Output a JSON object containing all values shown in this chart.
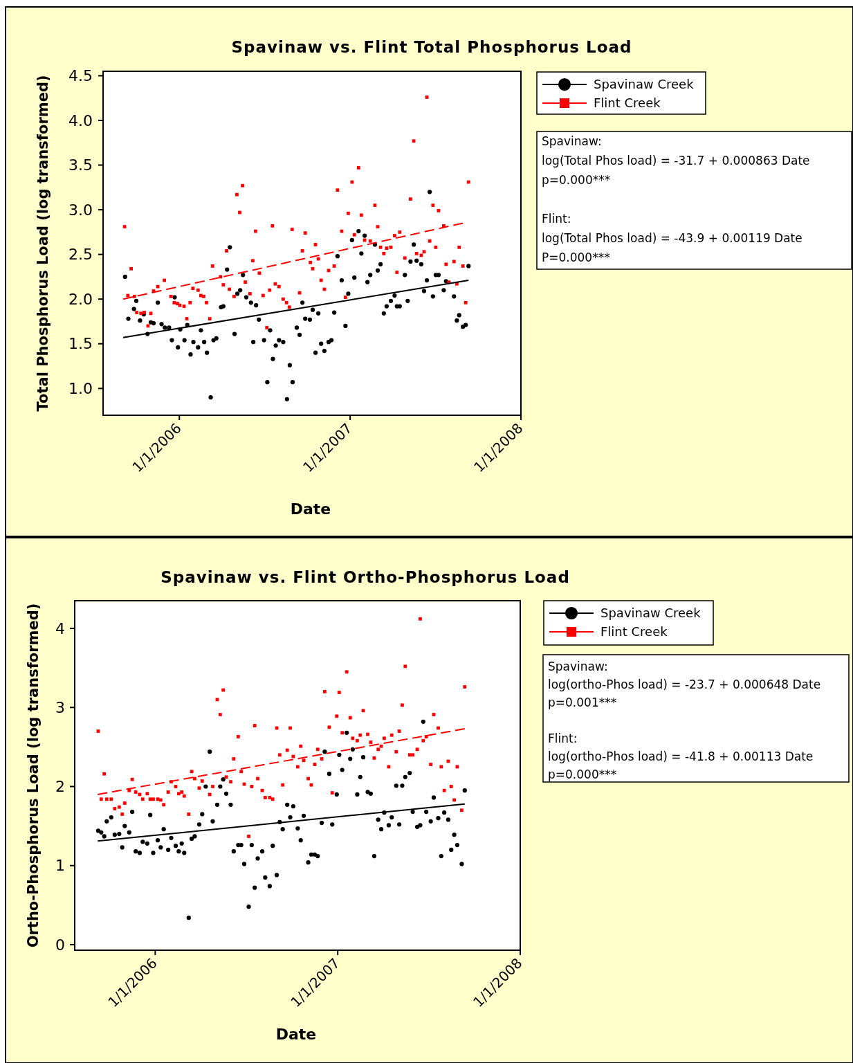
{
  "chart_data": [
    {
      "type": "scatter",
      "title": "Spavinaw vs. Flint Total Phosphorus Load",
      "xlabel": "Date",
      "ylabel": "Total Phosphorus Load (log transformed)",
      "legend": "right",
      "xlim": [
        "2005-07-22",
        "2008-01-01"
      ],
      "xticks": [
        {
          "value": "2006-01-01",
          "label": "1/1/2006"
        },
        {
          "value": "2007-01-01",
          "label": "1/1/2007"
        },
        {
          "value": "2008-01-01",
          "label": "1/1/2008"
        }
      ],
      "ylim": [
        0.7,
        4.55
      ],
      "yticks": [
        {
          "value": 1,
          "label": "1.0"
        },
        1.5,
        {
          "value": 2,
          "label": "2.0"
        },
        2.5,
        {
          "value": 3,
          "label": "3.0"
        },
        3.5,
        {
          "value": 4,
          "label": "4.0"
        },
        4.5
      ],
      "annotations": [
        "Spavinaw:",
        "log(Total Phos load) = -31.7 + 0.000863 Date",
        "p=0.000***",
        "Flint:",
        "log(Total Phos load) = -43.9 + 0.00119 Date",
        "P=0.000***"
      ],
      "series": [
        {
          "name": "Spavinaw Creek",
          "type": "scatter",
          "marker": "circle",
          "color": "#000000",
          "x": [
            "2005-09-07",
            "2005-09-14",
            "2005-09-26",
            "2005-10-01",
            "2005-10-09",
            "2005-10-17",
            "2005-10-25",
            "2005-11-01",
            "2005-11-07",
            "2005-11-16",
            "2005-11-24",
            "2005-12-01",
            "2005-12-10",
            "2005-12-16",
            "2005-12-22",
            "2005-12-29",
            "2006-01-03",
            "2006-01-12",
            "2006-01-18",
            "2006-01-25",
            "2006-01-31",
            "2006-02-10",
            "2006-02-16",
            "2006-02-23",
            "2006-03-01",
            "2006-03-09",
            "2006-03-15",
            "2006-03-21",
            "2006-03-31",
            "2006-04-05",
            "2006-04-13",
            "2006-04-19",
            "2006-04-29",
            "2006-05-05",
            "2006-05-11",
            "2006-05-17",
            "2006-05-24",
            "2006-06-03",
            "2006-06-08",
            "2006-06-14",
            "2006-06-20",
            "2006-07-01",
            "2006-07-08",
            "2006-07-14",
            "2006-07-20",
            "2006-07-26",
            "2006-08-02",
            "2006-08-11",
            "2006-08-19",
            "2006-08-25",
            "2006-08-31",
            "2006-09-09",
            "2006-09-15",
            "2006-09-21",
            "2006-09-27",
            "2006-10-07",
            "2006-10-13",
            "2006-10-19",
            "2006-10-25",
            "2006-10-31",
            "2006-11-07",
            "2006-11-16",
            "2006-11-22",
            "2006-11-28",
            "2006-12-05",
            "2006-12-14",
            "2006-12-22",
            "2006-12-28",
            "2007-01-05",
            "2007-01-10",
            "2007-01-19",
            "2007-01-25",
            "2007-02-01",
            "2007-02-07",
            "2007-02-13",
            "2007-02-23",
            "2007-03-01",
            "2007-03-07",
            "2007-03-14",
            "2007-03-20",
            "2007-03-29",
            "2007-04-06",
            "2007-04-11",
            "2007-04-17",
            "2007-04-28",
            "2007-05-04",
            "2007-05-10",
            "2007-05-17",
            "2007-05-23",
            "2007-06-02",
            "2007-06-08",
            "2007-06-14",
            "2007-06-20",
            "2007-06-27",
            "2007-07-03",
            "2007-07-09",
            "2007-07-20",
            "2007-07-25",
            "2007-08-11",
            "2007-08-17",
            "2007-08-22",
            "2007-08-30",
            "2007-09-05",
            "2007-09-11"
          ],
          "values": [
            2.25,
            1.78,
            1.89,
            1.98,
            1.76,
            1.83,
            1.61,
            1.74,
            1.73,
            1.96,
            1.72,
            1.68,
            1.68,
            1.54,
            2.02,
            1.46,
            1.66,
            1.54,
            1.71,
            1.38,
            1.52,
            1.46,
            1.65,
            1.52,
            1.4,
            0.9,
            1.54,
            1.56,
            1.91,
            1.92,
            2.33,
            2.58,
            1.61,
            2.06,
            2.1,
            2.27,
            2.02,
            1.96,
            1.52,
            1.93,
            1.77,
            1.54,
            1.07,
            1.65,
            1.33,
            1.48,
            1.54,
            1.52,
            0.88,
            1.26,
            1.07,
            1.68,
            1.6,
            1.96,
            1.78,
            1.77,
            1.88,
            1.4,
            1.84,
            1.5,
            1.42,
            1.52,
            1.54,
            1.85,
            2.48,
            2.21,
            1.7,
            2.06,
            2.66,
            2.24,
            2.76,
            2.51,
            2.71,
            2.19,
            2.27,
            2.61,
            2.32,
            2.39,
            1.84,
            1.92,
            1.98,
            2.04,
            1.92,
            1.92,
            2.27,
            1.98,
            2.42,
            2.61,
            2.43,
            2.39,
            2.09,
            2.21,
            3.2,
            2.03,
            2.27,
            2.27,
            2.1,
            2.2,
            2.03,
            1.76,
            1.82,
            1.69,
            1.71,
            2.37
          ]
        },
        {
          "name": "Flint Creek",
          "type": "scatter",
          "marker": "square",
          "color": "#ff0000",
          "x": [
            "2005-09-06",
            "2005-09-13",
            "2005-09-20",
            "2005-09-27",
            "2005-10-02",
            "2005-10-11",
            "2005-10-18",
            "2005-10-26",
            "2005-11-01",
            "2005-11-07",
            "2005-11-16",
            "2005-11-30",
            "2005-12-14",
            "2005-12-21",
            "2005-12-28",
            "2006-01-02",
            "2006-01-11",
            "2006-01-17",
            "2006-01-24",
            "2006-01-30",
            "2006-02-10",
            "2006-02-16",
            "2006-02-22",
            "2006-02-28",
            "2006-03-07",
            "2006-03-13",
            "2006-03-30",
            "2006-04-05",
            "2006-04-12",
            "2006-04-18",
            "2006-04-28",
            "2006-05-04",
            "2006-05-10",
            "2006-05-16",
            "2006-05-22",
            "2006-06-01",
            "2006-06-07",
            "2006-06-13",
            "2006-06-21",
            "2006-06-29",
            "2006-07-07",
            "2006-07-13",
            "2006-07-19",
            "2006-07-25",
            "2006-08-02",
            "2006-08-11",
            "2006-08-18",
            "2006-08-24",
            "2006-08-30",
            "2006-09-15",
            "2006-09-21",
            "2006-09-27",
            "2006-10-08",
            "2006-10-13",
            "2006-10-19",
            "2006-10-25",
            "2006-10-31",
            "2006-11-07",
            "2006-11-16",
            "2006-11-28",
            "2006-12-05",
            "2006-12-14",
            "2006-12-22",
            "2006-12-28",
            "2007-01-05",
            "2007-01-10",
            "2007-01-19",
            "2007-01-25",
            "2007-02-01",
            "2007-02-13",
            "2007-02-23",
            "2007-03-01",
            "2007-03-07",
            "2007-03-14",
            "2007-03-20",
            "2007-03-29",
            "2007-04-06",
            "2007-04-11",
            "2007-04-17",
            "2007-04-28",
            "2007-05-10",
            "2007-05-17",
            "2007-05-23",
            "2007-06-02",
            "2007-06-08",
            "2007-06-14",
            "2007-06-20",
            "2007-06-27",
            "2007-07-03",
            "2007-07-09",
            "2007-07-20",
            "2007-07-25",
            "2007-07-31",
            "2007-08-11",
            "2007-08-17",
            "2007-08-22",
            "2007-08-30",
            "2007-09-05",
            "2007-09-11"
          ],
          "values": [
            2.81,
            2.04,
            2.34,
            2.03,
            1.85,
            1.84,
            1.85,
            1.7,
            1.84,
            2.09,
            2.14,
            2.21,
            2.03,
            1.96,
            1.95,
            1.93,
            1.92,
            1.78,
            1.96,
            2.12,
            2.1,
            2.04,
            2.03,
            1.96,
            1.78,
            2.37,
            2.25,
            2.16,
            2.54,
            2.11,
            2.03,
            3.17,
            2.97,
            3.27,
            2.19,
            2.06,
            2.43,
            2.76,
            2.29,
            2.04,
            1.68,
            2.1,
            2.82,
            2.17,
            2.14,
            2.0,
            1.96,
            1.91,
            2.78,
            2.07,
            2.54,
            2.74,
            2.41,
            2.34,
            2.61,
            2.45,
            2.21,
            2.11,
            2.32,
            2.37,
            3.22,
            2.76,
            2.02,
            2.96,
            3.31,
            2.72,
            3.47,
            2.94,
            2.66,
            2.65,
            3.05,
            2.81,
            2.58,
            2.51,
            2.57,
            2.58,
            2.71,
            2.3,
            2.75,
            2.46,
            3.12,
            3.77,
            2.51,
            2.49,
            2.53,
            4.26,
            2.65,
            3.05,
            2.58,
            2.99,
            2.82,
            2.39,
            2.19,
            2.42,
            2.17,
            2.58,
            2.37,
            1.96,
            3.31
          ]
        },
        {
          "type": "line",
          "color": "#000000",
          "line_style": "solid",
          "x": [
            "2005-09-03",
            "2007-09-11"
          ],
          "values": [
            1.57,
            2.21
          ]
        },
        {
          "type": "line",
          "color": "#ff0000",
          "line_style": "dashed",
          "x": [
            "2005-09-03",
            "2007-08-30"
          ],
          "values": [
            2.0,
            2.85
          ]
        }
      ]
    },
    {
      "type": "scatter",
      "title": "Spavinaw vs. Flint Ortho-Phosphorus Load",
      "xlabel": "Date",
      "ylabel": "Ortho-Phosphorus Load (log transformed)",
      "legend": "right",
      "xlim": [
        "2005-07-24",
        "2008-01-01"
      ],
      "xticks": [
        {
          "value": "2006-01-01",
          "label": "1/1/2006"
        },
        {
          "value": "2007-01-01",
          "label": "1/1/2007"
        },
        {
          "value": "2008-01-01",
          "label": "1/1/2008"
        }
      ],
      "ylim": [
        -0.07,
        4.35
      ],
      "yticks": [
        0,
        1,
        2,
        3,
        4
      ],
      "annotations": [
        "Spavinaw:",
        "log(ortho-Phos load) = -23.7 + 0.000648 Date",
        "p=0.001***",
        "Flint:",
        "log(ortho-Phos load) = -41.8 + 0.00113 Date",
        "p=0.000***"
      ],
      "series": [
        {
          "name": "Spavinaw Creek",
          "type": "scatter",
          "marker": "circle",
          "color": "#000000",
          "x": [
            "2005-09-09",
            "2005-09-15",
            "2005-09-21",
            "2005-09-26",
            "2005-10-05",
            "2005-10-12",
            "2005-10-21",
            "2005-10-27",
            "2005-11-01",
            "2005-11-10",
            "2005-11-16",
            "2005-11-23",
            "2005-12-01",
            "2005-12-07",
            "2005-12-16",
            "2005-12-22",
            "2005-12-28",
            "2006-01-06",
            "2006-01-12",
            "2006-01-18",
            "2006-01-27",
            "2006-02-02",
            "2006-02-11",
            "2006-02-17",
            "2006-02-23",
            "2006-02-28",
            "2006-03-09",
            "2006-03-15",
            "2006-03-21",
            "2006-03-30",
            "2006-04-05",
            "2006-04-12",
            "2006-04-20",
            "2006-04-26",
            "2006-05-05",
            "2006-05-11",
            "2006-05-17",
            "2006-05-23",
            "2006-06-01",
            "2006-06-07",
            "2006-06-16",
            "2006-06-22",
            "2006-06-28",
            "2006-07-07",
            "2006-07-13",
            "2006-07-19",
            "2006-07-25",
            "2006-08-03",
            "2006-08-09",
            "2006-08-18",
            "2006-08-24",
            "2006-09-01",
            "2006-09-07",
            "2006-09-13",
            "2006-09-22",
            "2006-09-28",
            "2006-10-04",
            "2006-10-13",
            "2006-10-19",
            "2006-10-25",
            "2006-11-03",
            "2006-11-09",
            "2006-11-16",
            "2006-11-22",
            "2006-11-30",
            "2006-12-06",
            "2006-12-15",
            "2006-12-21",
            "2006-12-30",
            "2007-01-04",
            "2007-01-10",
            "2007-01-19",
            "2007-01-26",
            "2007-01-31",
            "2007-02-09",
            "2007-02-15",
            "2007-02-21",
            "2007-03-02",
            "2007-03-08",
            "2007-03-15",
            "2007-03-23",
            "2007-03-29",
            "2007-04-04",
            "2007-04-13",
            "2007-04-19",
            "2007-04-28",
            "2007-05-04",
            "2007-05-10",
            "2007-05-16",
            "2007-05-25",
            "2007-05-31",
            "2007-06-09",
            "2007-06-15",
            "2007-06-21",
            "2007-06-27",
            "2007-07-06",
            "2007-07-12",
            "2007-07-21",
            "2007-07-27",
            "2007-08-02",
            "2007-08-10",
            "2007-08-16",
            "2007-08-22",
            "2007-08-28",
            "2007-09-06",
            "2007-09-12"
          ],
          "values": [
            1.44,
            1.42,
            1.37,
            1.56,
            1.61,
            1.39,
            1.4,
            1.23,
            1.5,
            1.42,
            1.68,
            1.18,
            1.16,
            1.3,
            1.28,
            1.64,
            1.16,
            1.32,
            1.23,
            1.46,
            1.2,
            1.35,
            1.25,
            1.18,
            1.28,
            1.16,
            0.34,
            1.34,
            1.37,
            1.52,
            1.65,
            2.0,
            2.44,
            1.56,
            1.77,
            2.0,
            2.09,
            1.91,
            1.77,
            1.18,
            1.26,
            1.26,
            1.02,
            0.48,
            1.26,
            0.72,
            1.09,
            1.18,
            0.85,
            0.74,
            1.25,
            0.88,
            1.55,
            1.46,
            1.77,
            1.61,
            1.75,
            1.47,
            1.32,
            1.63,
            1.04,
            1.14,
            1.14,
            1.12,
            1.54,
            2.44,
            2.16,
            1.52,
            1.9,
            2.4,
            2.21,
            2.68,
            2.35,
            2.47,
            1.9,
            2.12,
            2.37,
            1.93,
            1.91,
            1.12,
            1.58,
            1.46,
            1.67,
            1.51,
            1.61,
            2.01,
            1.52,
            2.01,
            2.12,
            2.17,
            1.68,
            1.49,
            1.51,
            2.82,
            1.68,
            1.56,
            1.86,
            1.6,
            1.12,
            1.67,
            1.58,
            1.2,
            1.39,
            1.26,
            1.02,
            1.95
          ]
        },
        {
          "name": "Flint Creek",
          "type": "scatter",
          "marker": "square",
          "color": "#ff0000",
          "x": [
            "2005-09-09",
            "2005-09-15",
            "2005-09-21",
            "2005-09-26",
            "2005-10-05",
            "2005-10-12",
            "2005-10-21",
            "2005-10-27",
            "2005-11-01",
            "2005-11-10",
            "2005-11-16",
            "2005-11-23",
            "2005-12-01",
            "2005-12-07",
            "2005-12-16",
            "2005-12-22",
            "2005-12-28",
            "2006-01-06",
            "2006-01-12",
            "2006-01-18",
            "2006-01-27",
            "2006-02-02",
            "2006-02-11",
            "2006-02-17",
            "2006-02-23",
            "2006-02-28",
            "2006-03-09",
            "2006-03-15",
            "2006-03-21",
            "2006-03-30",
            "2006-04-05",
            "2006-04-20",
            "2006-04-26",
            "2006-05-05",
            "2006-05-11",
            "2006-05-17",
            "2006-05-23",
            "2006-06-01",
            "2006-06-07",
            "2006-06-16",
            "2006-06-22",
            "2006-06-28",
            "2006-07-07",
            "2006-07-13",
            "2006-07-19",
            "2006-07-25",
            "2006-08-03",
            "2006-08-09",
            "2006-08-18",
            "2006-08-24",
            "2006-09-01",
            "2006-09-07",
            "2006-09-13",
            "2006-09-22",
            "2006-09-28",
            "2006-10-04",
            "2006-10-13",
            "2006-10-19",
            "2006-10-25",
            "2006-11-03",
            "2006-11-09",
            "2006-11-16",
            "2006-11-22",
            "2006-11-30",
            "2006-12-06",
            "2006-12-15",
            "2006-12-21",
            "2006-12-30",
            "2007-01-04",
            "2007-01-10",
            "2007-01-19",
            "2007-01-26",
            "2007-01-31",
            "2007-02-09",
            "2007-02-15",
            "2007-02-21",
            "2007-03-02",
            "2007-03-08",
            "2007-03-15",
            "2007-03-23",
            "2007-03-29",
            "2007-04-04",
            "2007-04-13",
            "2007-04-19",
            "2007-04-28",
            "2007-05-04",
            "2007-05-10",
            "2007-05-16",
            "2007-05-25",
            "2007-05-31",
            "2007-06-09",
            "2007-06-15",
            "2007-06-21",
            "2007-06-27",
            "2007-07-06",
            "2007-07-12",
            "2007-07-21",
            "2007-07-27",
            "2007-08-02",
            "2007-08-10",
            "2007-08-16",
            "2007-08-22",
            "2007-08-28",
            "2007-09-06",
            "2007-09-12"
          ],
          "values": [
            2.7,
            1.84,
            2.16,
            1.84,
            1.84,
            1.72,
            1.74,
            1.65,
            1.79,
            1.95,
            2.09,
            1.93,
            1.9,
            1.84,
            1.91,
            1.84,
            1.84,
            1.84,
            1.83,
            1.77,
            1.93,
            2.06,
            2.0,
            1.91,
            1.93,
            1.88,
            1.65,
            2.19,
            2.1,
            1.98,
            2.07,
            1.9,
            2.0,
            3.1,
            2.91,
            3.22,
            2.12,
            2.06,
            2.35,
            2.63,
            2.19,
            2.03,
            1.37,
            2.0,
            2.77,
            2.1,
            1.95,
            1.86,
            1.86,
            1.84,
            2.74,
            2.4,
            2.02,
            2.46,
            2.74,
            2.38,
            2.25,
            2.51,
            2.33,
            2.1,
            2.02,
            2.28,
            2.47,
            2.35,
            3.2,
            2.75,
            1.92,
            2.89,
            3.19,
            2.68,
            3.45,
            2.87,
            2.61,
            2.58,
            2.65,
            2.96,
            2.66,
            2.56,
            2.36,
            2.47,
            2.51,
            2.61,
            2.25,
            2.65,
            2.44,
            2.7,
            3.03,
            3.52,
            2.4,
            2.4,
            2.47,
            4.12,
            2.58,
            2.63,
            2.28,
            2.91,
            2.74,
            2.25,
            1.95,
            2.32,
            2.0,
            1.83,
            2.25,
            1.7,
            3.26
          ]
        },
        {
          "type": "line",
          "color": "#000000",
          "line_style": "solid",
          "x": [
            "2005-09-08",
            "2007-09-12"
          ],
          "values": [
            1.31,
            1.78
          ]
        },
        {
          "type": "line",
          "color": "#ff0000",
          "line_style": "dashed",
          "x": [
            "2005-09-08",
            "2007-09-12"
          ],
          "values": [
            1.9,
            2.73
          ]
        }
      ]
    }
  ]
}
